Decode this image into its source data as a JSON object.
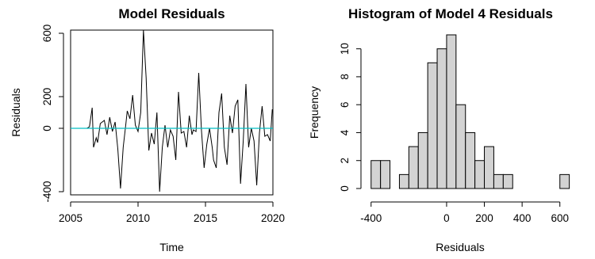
{
  "chart_data": [
    {
      "type": "line",
      "title": "Model Residuals",
      "xlabel": "Time",
      "ylabel": "Residuals",
      "xlim": [
        2005,
        2020
      ],
      "ylim": [
        -420,
        620
      ],
      "xticks": [
        2005,
        2010,
        2015,
        2020
      ],
      "yticks": [
        -400,
        0,
        200,
        600
      ],
      "reference_line": {
        "y": 0,
        "color": "#00bfc4"
      },
      "series": [
        {
          "color": "#000000",
          "x": [
            2005.9,
            2006.0,
            2006.1,
            2006.2,
            2006.4,
            2006.6,
            2006.7,
            2006.9,
            2007.0,
            2007.2,
            2007.5,
            2007.7,
            2007.9,
            2008.1,
            2008.3,
            2008.5,
            2008.7,
            2008.9,
            2009.1,
            2009.2,
            2009.4,
            2009.6,
            2009.8,
            2010.0,
            2010.2,
            2010.4,
            2010.6,
            2010.8,
            2011.0,
            2011.2,
            2011.4,
            2011.6,
            2011.8,
            2012.0,
            2012.2,
            2012.4,
            2012.6,
            2012.8,
            2013.0,
            2013.2,
            2013.4,
            2013.6,
            2013.8,
            2014.0,
            2014.1,
            2014.3,
            2014.5,
            2014.7,
            2014.9,
            2015.1,
            2015.3,
            2015.5,
            2015.6,
            2015.8,
            2016.0,
            2016.2,
            2016.4,
            2016.6,
            2016.8,
            2017.0,
            2017.2,
            2017.4,
            2017.6,
            2017.8,
            2018.0,
            2018.2,
            2018.4,
            2018.6,
            2018.8,
            2019.0,
            2019.2,
            2019.4,
            2019.6,
            2019.8,
            2019.95
          ],
          "y": [
            0,
            0,
            0,
            0,
            10,
            130,
            -120,
            -60,
            -90,
            30,
            50,
            -40,
            70,
            -20,
            40,
            -130,
            -380,
            -120,
            30,
            110,
            60,
            210,
            20,
            -20,
            100,
            620,
            320,
            -140,
            -30,
            -100,
            100,
            -400,
            -120,
            20,
            -120,
            -10,
            -50,
            -200,
            230,
            -30,
            -20,
            -120,
            80,
            -40,
            -10,
            -20,
            350,
            -10,
            -250,
            -100,
            0,
            -120,
            -200,
            -250,
            100,
            220,
            -120,
            -230,
            80,
            -30,
            140,
            180,
            -350,
            -80,
            280,
            -120,
            0,
            -80,
            -360,
            -30,
            140,
            -50,
            -40,
            -80,
            120
          ]
        }
      ]
    },
    {
      "type": "bar",
      "title": "Histogram of Model 4 Residuals",
      "xlabel": "Residuals",
      "ylabel": "Frequency",
      "bin_width": 50,
      "bin_edges_start": -400,
      "values": [
        2,
        2,
        0,
        1,
        3,
        4,
        9,
        10,
        11,
        6,
        4,
        2,
        3,
        1,
        1,
        0,
        0,
        0,
        0,
        0,
        1
      ],
      "bar_color": "#d3d3d3",
      "xlim": [
        -420,
        660
      ],
      "ylim": [
        0,
        11
      ],
      "xticks": [
        -400,
        0,
        200,
        400,
        600
      ],
      "yticks": [
        0,
        2,
        4,
        6,
        8,
        10
      ]
    }
  ]
}
